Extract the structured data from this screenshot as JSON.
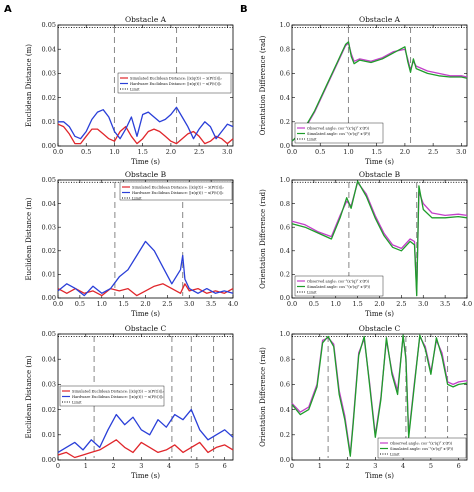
{
  "panel_letters": [
    "A",
    "B"
  ],
  "colors": {
    "red": "#e0262b",
    "blue": "#2a3fd8",
    "magenta": "#c33fc9",
    "green": "#1f9c2b",
    "limit": "#000000",
    "marker": "#888888"
  },
  "chart_data": [
    {
      "id": "A1",
      "type": "line",
      "title": "Obstacle A",
      "xlabel": "Time (s)",
      "ylabel": "Euclidean Distance (m)",
      "xlim": [
        0,
        3.1
      ],
      "ylim": [
        0,
        0.05
      ],
      "xticks": [
        "0.0",
        "0.5",
        "1.0",
        "1.5",
        "2.0",
        "2.5",
        "3.0"
      ],
      "xtick_values": [
        0,
        0.5,
        1,
        1.5,
        2,
        2.5,
        3
      ],
      "yticks": [
        "0.00",
        "0.01",
        "0.02",
        "0.03",
        "0.04",
        "0.05"
      ],
      "ytick_values": [
        0,
        0.01,
        0.02,
        0.03,
        0.04,
        0.05
      ],
      "limit": 0.049,
      "markers": [
        1.0,
        2.1
      ],
      "legend_position": "center-right",
      "series": [
        {
          "name": "Simulated Euclidean Distance: ||x(q(t)) − x(P(t))||₂",
          "color": "red",
          "x": [
            0,
            0.1,
            0.2,
            0.3,
            0.4,
            0.5,
            0.6,
            0.7,
            0.8,
            0.9,
            1.0,
            1.1,
            1.2,
            1.3,
            1.4,
            1.5,
            1.6,
            1.7,
            1.8,
            1.9,
            2.0,
            2.1,
            2.2,
            2.3,
            2.4,
            2.5,
            2.6,
            2.7,
            2.8,
            2.9,
            3.0,
            3.1
          ],
          "y": [
            0.009,
            0.008,
            0.005,
            0.001,
            0.001,
            0.004,
            0.007,
            0.007,
            0.005,
            0.003,
            0.002,
            0.006,
            0.008,
            0.004,
            0.001,
            0.003,
            0.006,
            0.007,
            0.006,
            0.004,
            0.002,
            0.001,
            0.003,
            0.005,
            0.006,
            0.004,
            0.001,
            0.002,
            0.004,
            0.003,
            0.001,
            0.003
          ]
        },
        {
          "name": "Hardware Euclidean Distance: ||x(q(t)) − x(P(t))||₂",
          "color": "blue",
          "x": [
            0,
            0.1,
            0.2,
            0.3,
            0.4,
            0.5,
            0.6,
            0.7,
            0.8,
            0.9,
            1.0,
            1.1,
            1.2,
            1.3,
            1.4,
            1.5,
            1.6,
            1.7,
            1.8,
            1.9,
            2.0,
            2.1,
            2.2,
            2.3,
            2.4,
            2.5,
            2.6,
            2.7,
            2.8,
            2.9,
            3.0,
            3.1
          ],
          "y": [
            0.01,
            0.01,
            0.008,
            0.004,
            0.003,
            0.006,
            0.011,
            0.014,
            0.015,
            0.012,
            0.006,
            0.003,
            0.007,
            0.012,
            0.004,
            0.013,
            0.014,
            0.012,
            0.01,
            0.011,
            0.013,
            0.016,
            0.012,
            0.008,
            0.003,
            0.007,
            0.01,
            0.008,
            0.003,
            0.006,
            0.009,
            0.008
          ]
        }
      ]
    },
    {
      "id": "B1",
      "type": "line",
      "title": "Obstacle A",
      "xlabel": "Time (s)",
      "ylabel": "Orientation Difference (rad)",
      "xlim": [
        0,
        3.1
      ],
      "ylim": [
        0,
        1.0
      ],
      "xticks": [
        "0.0",
        "0.5",
        "1.0",
        "1.5",
        "2.0",
        "2.5",
        "3.0"
      ],
      "xtick_values": [
        0,
        0.5,
        1,
        1.5,
        2,
        2.5,
        3
      ],
      "yticks": [
        "0.0",
        "0.2",
        "0.4",
        "0.6",
        "0.8",
        "1.0"
      ],
      "ytick_values": [
        0,
        0.2,
        0.4,
        0.6,
        0.8,
        1.0
      ],
      "limit": 0.98,
      "markers": [
        1.0,
        2.1
      ],
      "legend_position": "bottom-left",
      "series": [
        {
          "name": "Observed angle: cos⁻¹(x'(q)ᵀ x'(P))",
          "color": "magenta",
          "x": [
            0,
            0.2,
            0.4,
            0.6,
            0.8,
            0.9,
            0.95,
            1.0,
            1.05,
            1.1,
            1.2,
            1.4,
            1.6,
            1.8,
            2.0,
            2.05,
            2.1,
            2.15,
            2.2,
            2.4,
            2.6,
            2.8,
            3.0,
            3.1
          ],
          "y": [
            0.04,
            0.12,
            0.28,
            0.48,
            0.68,
            0.78,
            0.83,
            0.85,
            0.76,
            0.7,
            0.72,
            0.7,
            0.73,
            0.78,
            0.8,
            0.72,
            0.63,
            0.7,
            0.66,
            0.62,
            0.6,
            0.58,
            0.58,
            0.57
          ]
        },
        {
          "name": "Simulated angle: cos⁻¹(x'(q)ᵀ x'(P))",
          "color": "green",
          "x": [
            0,
            0.2,
            0.4,
            0.6,
            0.8,
            0.9,
            0.95,
            1.0,
            1.05,
            1.1,
            1.2,
            1.4,
            1.6,
            1.8,
            2.0,
            2.05,
            2.1,
            2.15,
            2.2,
            2.4,
            2.6,
            2.8,
            3.0,
            3.1
          ],
          "y": [
            0.04,
            0.13,
            0.29,
            0.49,
            0.69,
            0.79,
            0.84,
            0.86,
            0.74,
            0.68,
            0.71,
            0.69,
            0.72,
            0.77,
            0.82,
            0.7,
            0.61,
            0.72,
            0.64,
            0.6,
            0.58,
            0.57,
            0.57,
            0.56
          ]
        }
      ]
    },
    {
      "id": "A2",
      "type": "line",
      "title": "Obstacle B",
      "xlabel": "Time (s)",
      "ylabel": "Euclidean Distance (m)",
      "xlim": [
        0,
        4.0
      ],
      "ylim": [
        0,
        0.05
      ],
      "xticks": [
        "0.0",
        "0.5",
        "1.0",
        "1.5",
        "2.0",
        "2.5",
        "3.0",
        "3.5",
        "4.0"
      ],
      "xtick_values": [
        0,
        0.5,
        1,
        1.5,
        2,
        2.5,
        3,
        3.5,
        4
      ],
      "yticks": [
        "0.00",
        "0.01",
        "0.02",
        "0.03",
        "0.04",
        "0.05"
      ],
      "ytick_values": [
        0,
        0.01,
        0.02,
        0.03,
        0.04,
        0.05
      ],
      "limit": 0.049,
      "markers": [
        1.3,
        2.85
      ],
      "legend_position": "top-center",
      "series": [
        {
          "name": "Simulated Euclidean Distance: ||x(q(t)) − x(P(t))||₂",
          "color": "red",
          "x": [
            0,
            0.2,
            0.4,
            0.6,
            0.8,
            1.0,
            1.2,
            1.4,
            1.6,
            1.8,
            2.0,
            2.2,
            2.4,
            2.6,
            2.8,
            2.9,
            3.0,
            3.2,
            3.4,
            3.6,
            3.8,
            4.0
          ],
          "y": [
            0.004,
            0.002,
            0.004,
            0.002,
            0.003,
            0.001,
            0.004,
            0.003,
            0.004,
            0.001,
            0.003,
            0.005,
            0.006,
            0.004,
            0.002,
            0.006,
            0.003,
            0.004,
            0.002,
            0.003,
            0.002,
            0.004
          ]
        },
        {
          "name": "Hardware Euclidean Distance: ||x(q(t)) − x(P(t))||₂",
          "color": "blue",
          "x": [
            0,
            0.2,
            0.4,
            0.6,
            0.8,
            1.0,
            1.2,
            1.4,
            1.6,
            1.8,
            2.0,
            2.2,
            2.4,
            2.6,
            2.8,
            2.85,
            2.9,
            3.0,
            3.2,
            3.4,
            3.6,
            3.8,
            4.0
          ],
          "y": [
            0.003,
            0.006,
            0.004,
            0.001,
            0.005,
            0.002,
            0.004,
            0.009,
            0.012,
            0.018,
            0.024,
            0.02,
            0.013,
            0.006,
            0.012,
            0.018,
            0.008,
            0.004,
            0.002,
            0.004,
            0.002,
            0.003,
            0.002
          ]
        }
      ]
    },
    {
      "id": "B2",
      "type": "line",
      "title": "Obstacle B",
      "xlabel": "Time (s)",
      "ylabel": "Orientation Difference (rad)",
      "xlim": [
        0,
        4.0
      ],
      "ylim": [
        0,
        1.0
      ],
      "xticks": [
        "0.0",
        "0.5",
        "1.0",
        "1.5",
        "2.0",
        "2.5",
        "3.0",
        "3.5",
        "4.0"
      ],
      "xtick_values": [
        0,
        0.5,
        1,
        1.5,
        2,
        2.5,
        3,
        3.5,
        4
      ],
      "yticks": [
        "0.0",
        "0.2",
        "0.4",
        "0.6",
        "0.8",
        "1.0"
      ],
      "ytick_values": [
        0,
        0.2,
        0.4,
        0.6,
        0.8,
        1.0
      ],
      "limit": 0.98,
      "markers": [
        1.3,
        2.85
      ],
      "legend_position": "bottom-left",
      "series": [
        {
          "name": "Observed angle: cos⁻¹(x'(q)ᵀ x'(P))",
          "color": "magenta",
          "x": [
            0,
            0.3,
            0.6,
            0.9,
            1.1,
            1.25,
            1.35,
            1.5,
            1.7,
            1.9,
            2.1,
            2.3,
            2.5,
            2.7,
            2.8,
            2.85,
            2.9,
            3.0,
            3.2,
            3.5,
            3.8,
            4.0
          ],
          "y": [
            0.65,
            0.62,
            0.56,
            0.52,
            0.7,
            0.82,
            0.78,
            0.98,
            0.88,
            0.7,
            0.55,
            0.45,
            0.42,
            0.5,
            0.48,
            0.05,
            0.9,
            0.8,
            0.72,
            0.7,
            0.71,
            0.7
          ]
        },
        {
          "name": "Simulated angle: cos⁻¹(x'(q)ᵀ x'(P))",
          "color": "green",
          "x": [
            0,
            0.3,
            0.6,
            0.9,
            1.1,
            1.25,
            1.35,
            1.5,
            1.7,
            1.9,
            2.1,
            2.3,
            2.5,
            2.7,
            2.8,
            2.85,
            2.9,
            3.0,
            3.2,
            3.5,
            3.8,
            4.0
          ],
          "y": [
            0.63,
            0.6,
            0.55,
            0.5,
            0.68,
            0.85,
            0.76,
            0.99,
            0.86,
            0.68,
            0.53,
            0.43,
            0.4,
            0.48,
            0.45,
            0.02,
            0.95,
            0.75,
            0.68,
            0.68,
            0.69,
            0.68
          ]
        }
      ]
    },
    {
      "id": "A3",
      "type": "line",
      "title": "Obstacle C",
      "xlabel": "Time (s)",
      "ylabel": "Euclidean Distance (m)",
      "xlim": [
        0,
        6.3
      ],
      "ylim": [
        0,
        0.05
      ],
      "xticks": [
        "0",
        "1",
        "2",
        "3",
        "4",
        "5",
        "6"
      ],
      "xtick_values": [
        0,
        1,
        2,
        3,
        4,
        5,
        6
      ],
      "yticks": [
        "0.00",
        "0.01",
        "0.02",
        "0.03",
        "0.04",
        "0.05"
      ],
      "ytick_values": [
        0,
        0.01,
        0.02,
        0.03,
        0.04,
        0.05
      ],
      "limit": 0.049,
      "markers": [
        1.3,
        4.1,
        4.8,
        5.6
      ],
      "legend_position": "bottom-left",
      "series": [
        {
          "name": "Simulated Euclidean Distance: ||x(q(t)) − x(P(t))||₂",
          "color": "red",
          "x": [
            0,
            0.3,
            0.6,
            0.9,
            1.2,
            1.5,
            1.8,
            2.1,
            2.4,
            2.7,
            3.0,
            3.3,
            3.6,
            3.9,
            4.2,
            4.5,
            4.8,
            5.1,
            5.4,
            5.7,
            6.0,
            6.3
          ],
          "y": [
            0.002,
            0.003,
            0.001,
            0.002,
            0.003,
            0.004,
            0.006,
            0.008,
            0.005,
            0.003,
            0.007,
            0.005,
            0.003,
            0.004,
            0.006,
            0.003,
            0.005,
            0.007,
            0.003,
            0.005,
            0.006,
            0.004
          ]
        },
        {
          "name": "Hardware Euclidean Distance: ||x(q(t)) − x(P(t))||₂",
          "color": "blue",
          "x": [
            0,
            0.3,
            0.6,
            0.9,
            1.2,
            1.5,
            1.8,
            2.1,
            2.4,
            2.7,
            3.0,
            3.3,
            3.6,
            3.9,
            4.2,
            4.5,
            4.8,
            5.1,
            5.4,
            5.7,
            6.0,
            6.3
          ],
          "y": [
            0.003,
            0.005,
            0.007,
            0.004,
            0.008,
            0.005,
            0.012,
            0.018,
            0.014,
            0.017,
            0.012,
            0.01,
            0.016,
            0.013,
            0.018,
            0.016,
            0.02,
            0.012,
            0.008,
            0.01,
            0.012,
            0.009
          ]
        }
      ]
    },
    {
      "id": "B3",
      "type": "line",
      "title": "Obstacle C",
      "xlabel": "Time (s)",
      "ylabel": "Orientation Difference (rad)",
      "xlim": [
        0,
        6.3
      ],
      "ylim": [
        0,
        1.0
      ],
      "xticks": [
        "0",
        "1",
        "2",
        "3",
        "4",
        "5",
        "6"
      ],
      "xtick_values": [
        0,
        1,
        2,
        3,
        4,
        5,
        6
      ],
      "yticks": [
        "0.0",
        "0.2",
        "0.4",
        "0.6",
        "0.8",
        "1.0"
      ],
      "ytick_values": [
        0,
        0.2,
        0.4,
        0.6,
        0.8,
        1.0
      ],
      "limit": 0.98,
      "markers": [
        1.3,
        4.1,
        4.8,
        5.6
      ],
      "legend_position": "bottom-right",
      "series": [
        {
          "name": "Observed angle: cos⁻¹(x'(q)ᵀ x'(P))",
          "color": "magenta",
          "x": [
            0,
            0.3,
            0.6,
            0.9,
            1.1,
            1.3,
            1.5,
            1.7,
            1.9,
            2.1,
            2.2,
            2.4,
            2.6,
            2.8,
            3.0,
            3.2,
            3.4,
            3.6,
            3.8,
            4.0,
            4.1,
            4.2,
            4.4,
            4.6,
            4.8,
            5.0,
            5.2,
            5.4,
            5.6,
            5.8,
            6.0,
            6.3
          ],
          "y": [
            0.45,
            0.38,
            0.42,
            0.6,
            0.95,
            0.97,
            0.92,
            0.55,
            0.35,
            0.05,
            0.3,
            0.85,
            0.96,
            0.6,
            0.2,
            0.5,
            0.95,
            0.7,
            0.55,
            0.98,
            0.82,
            0.2,
            0.6,
            0.98,
            0.9,
            0.7,
            0.95,
            0.85,
            0.62,
            0.6,
            0.62,
            0.63
          ]
        },
        {
          "name": "Simulated angle: cos⁻¹(x'(q)ᵀ x'(P))",
          "color": "green",
          "x": [
            0,
            0.3,
            0.6,
            0.9,
            1.1,
            1.3,
            1.5,
            1.7,
            1.9,
            2.1,
            2.2,
            2.4,
            2.6,
            2.8,
            3.0,
            3.2,
            3.4,
            3.6,
            3.8,
            4.0,
            4.1,
            4.2,
            4.4,
            4.6,
            4.8,
            5.0,
            5.2,
            5.4,
            5.6,
            5.8,
            6.0,
            6.3
          ],
          "y": [
            0.44,
            0.36,
            0.4,
            0.58,
            0.93,
            0.98,
            0.9,
            0.52,
            0.32,
            0.03,
            0.28,
            0.83,
            0.98,
            0.58,
            0.18,
            0.48,
            0.97,
            0.68,
            0.52,
            0.99,
            0.8,
            0.18,
            0.58,
            0.99,
            0.88,
            0.68,
            0.97,
            0.82,
            0.6,
            0.58,
            0.6,
            0.61
          ]
        }
      ]
    }
  ]
}
